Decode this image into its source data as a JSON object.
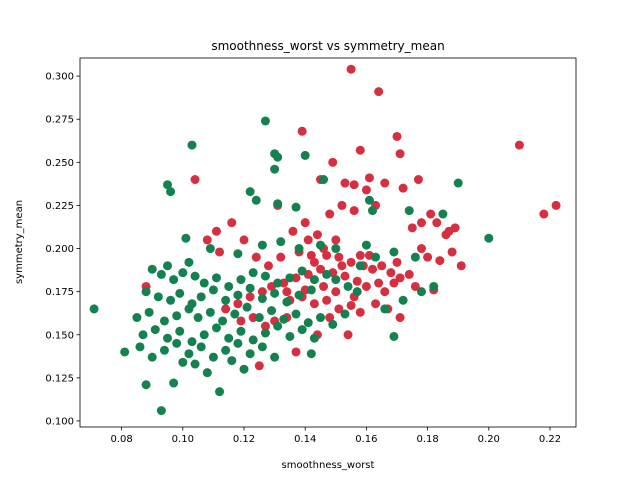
{
  "chart_data": {
    "type": "scatter",
    "title": "smoothness_worst vs symmetry_mean",
    "xlabel": "smoothness_worst",
    "ylabel": "symmetry_mean",
    "xlim": [
      0.0664,
      0.2285
    ],
    "ylim": [
      0.0965,
      0.3105
    ],
    "xticks": [
      0.08,
      0.1,
      0.12,
      0.14,
      0.16,
      0.18,
      0.2,
      0.22
    ],
    "yticks": [
      0.1,
      0.125,
      0.15,
      0.175,
      0.2,
      0.225,
      0.25,
      0.275,
      0.3
    ],
    "grid": false,
    "legend": "none",
    "series": [
      {
        "color": "#d62f3f",
        "points": [
          [
            0.155,
            0.304
          ],
          [
            0.164,
            0.291
          ],
          [
            0.139,
            0.268
          ],
          [
            0.17,
            0.265
          ],
          [
            0.21,
            0.26
          ],
          [
            0.158,
            0.257
          ],
          [
            0.171,
            0.255
          ],
          [
            0.149,
            0.25
          ],
          [
            0.104,
            0.24
          ],
          [
            0.145,
            0.24
          ],
          [
            0.161,
            0.241
          ],
          [
            0.166,
            0.238
          ],
          [
            0.153,
            0.238
          ],
          [
            0.156,
            0.237
          ],
          [
            0.177,
            0.24
          ],
          [
            0.172,
            0.235
          ],
          [
            0.16,
            0.234
          ],
          [
            0.218,
            0.22
          ],
          [
            0.222,
            0.225
          ],
          [
            0.183,
            0.215
          ],
          [
            0.178,
            0.215
          ],
          [
            0.175,
            0.212
          ],
          [
            0.187,
            0.21
          ],
          [
            0.189,
            0.212
          ],
          [
            0.181,
            0.22
          ],
          [
            0.163,
            0.225
          ],
          [
            0.152,
            0.225
          ],
          [
            0.156,
            0.222
          ],
          [
            0.148,
            0.22
          ],
          [
            0.131,
            0.225
          ],
          [
            0.136,
            0.21
          ],
          [
            0.14,
            0.215
          ],
          [
            0.144,
            0.208
          ],
          [
            0.15,
            0.205
          ],
          [
            0.138,
            0.198
          ],
          [
            0.142,
            0.196
          ],
          [
            0.146,
            0.2
          ],
          [
            0.151,
            0.195
          ],
          [
            0.155,
            0.192
          ],
          [
            0.159,
            0.19
          ],
          [
            0.162,
            0.188
          ],
          [
            0.165,
            0.19
          ],
          [
            0.168,
            0.186
          ],
          [
            0.171,
            0.183
          ],
          [
            0.174,
            0.185
          ],
          [
            0.178,
            0.2
          ],
          [
            0.18,
            0.195
          ],
          [
            0.184,
            0.193
          ],
          [
            0.186,
            0.208
          ],
          [
            0.188,
            0.198
          ],
          [
            0.191,
            0.19
          ],
          [
            0.176,
            0.178
          ],
          [
            0.169,
            0.18
          ],
          [
            0.166,
            0.175
          ],
          [
            0.16,
            0.178
          ],
          [
            0.157,
            0.181
          ],
          [
            0.153,
            0.184
          ],
          [
            0.149,
            0.186
          ],
          [
            0.145,
            0.188
          ],
          [
            0.141,
            0.185
          ],
          [
            0.137,
            0.183
          ],
          [
            0.133,
            0.18
          ],
          [
            0.129,
            0.178
          ],
          [
            0.126,
            0.175
          ],
          [
            0.122,
            0.172
          ],
          [
            0.118,
            0.168
          ],
          [
            0.114,
            0.165
          ],
          [
            0.111,
            0.21
          ],
          [
            0.116,
            0.215
          ],
          [
            0.108,
            0.205
          ],
          [
            0.112,
            0.198
          ],
          [
            0.12,
            0.205
          ],
          [
            0.124,
            0.195
          ],
          [
            0.128,
            0.19
          ],
          [
            0.132,
            0.195
          ],
          [
            0.135,
            0.17
          ],
          [
            0.139,
            0.172
          ],
          [
            0.143,
            0.168
          ],
          [
            0.147,
            0.17
          ],
          [
            0.151,
            0.165
          ],
          [
            0.155,
            0.167
          ],
          [
            0.158,
            0.163
          ],
          [
            0.163,
            0.168
          ],
          [
            0.167,
            0.165
          ],
          [
            0.171,
            0.16
          ],
          [
            0.15,
            0.175
          ],
          [
            0.146,
            0.178
          ],
          [
            0.14,
            0.176
          ],
          [
            0.134,
            0.16
          ],
          [
            0.13,
            0.158
          ],
          [
            0.127,
            0.155
          ],
          [
            0.123,
            0.16
          ],
          [
            0.119,
            0.158
          ],
          [
            0.125,
            0.132
          ],
          [
            0.144,
            0.15
          ],
          [
            0.148,
            0.16
          ],
          [
            0.156,
            0.172
          ],
          [
            0.088,
            0.178
          ],
          [
            0.154,
            0.15
          ],
          [
            0.137,
            0.14
          ],
          [
            0.141,
            0.205
          ],
          [
            0.143,
            0.192
          ],
          [
            0.147,
            0.196
          ],
          [
            0.152,
            0.19
          ],
          [
            0.161,
            0.196
          ],
          [
            0.164,
            0.18
          ],
          [
            0.158,
            0.196
          ],
          [
            0.17,
            0.192
          ],
          [
            0.182,
            0.176
          ],
          [
            0.134,
            0.175
          ]
        ]
      },
      {
        "color": "#148250",
        "points": [
          [
            0.127,
            0.274
          ],
          [
            0.103,
            0.26
          ],
          [
            0.13,
            0.255
          ],
          [
            0.131,
            0.253
          ],
          [
            0.14,
            0.254
          ],
          [
            0.13,
            0.246
          ],
          [
            0.095,
            0.237
          ],
          [
            0.096,
            0.233
          ],
          [
            0.146,
            0.24
          ],
          [
            0.19,
            0.238
          ],
          [
            0.122,
            0.233
          ],
          [
            0.124,
            0.228
          ],
          [
            0.131,
            0.226
          ],
          [
            0.137,
            0.224
          ],
          [
            0.161,
            0.228
          ],
          [
            0.162,
            0.222
          ],
          [
            0.174,
            0.222
          ],
          [
            0.185,
            0.22
          ],
          [
            0.101,
            0.206
          ],
          [
            0.2,
            0.206
          ],
          [
            0.095,
            0.19
          ],
          [
            0.102,
            0.192
          ],
          [
            0.109,
            0.2
          ],
          [
            0.118,
            0.197
          ],
          [
            0.126,
            0.202
          ],
          [
            0.132,
            0.204
          ],
          [
            0.138,
            0.2
          ],
          [
            0.145,
            0.202
          ],
          [
            0.15,
            0.2
          ],
          [
            0.16,
            0.202
          ],
          [
            0.169,
            0.198
          ],
          [
            0.176,
            0.195
          ],
          [
            0.09,
            0.188
          ],
          [
            0.093,
            0.185
          ],
          [
            0.097,
            0.182
          ],
          [
            0.1,
            0.186
          ],
          [
            0.104,
            0.184
          ],
          [
            0.107,
            0.18
          ],
          [
            0.111,
            0.183
          ],
          [
            0.115,
            0.178
          ],
          [
            0.119,
            0.182
          ],
          [
            0.123,
            0.186
          ],
          [
            0.127,
            0.184
          ],
          [
            0.131,
            0.18
          ],
          [
            0.135,
            0.183
          ],
          [
            0.139,
            0.187
          ],
          [
            0.143,
            0.182
          ],
          [
            0.147,
            0.185
          ],
          [
            0.088,
            0.175
          ],
          [
            0.092,
            0.172
          ],
          [
            0.096,
            0.17
          ],
          [
            0.099,
            0.174
          ],
          [
            0.103,
            0.168
          ],
          [
            0.106,
            0.172
          ],
          [
            0.11,
            0.176
          ],
          [
            0.114,
            0.17
          ],
          [
            0.118,
            0.173
          ],
          [
            0.122,
            0.177
          ],
          [
            0.126,
            0.171
          ],
          [
            0.13,
            0.174
          ],
          [
            0.134,
            0.169
          ],
          [
            0.138,
            0.173
          ],
          [
            0.142,
            0.176
          ],
          [
            0.071,
            0.165
          ],
          [
            0.085,
            0.16
          ],
          [
            0.089,
            0.163
          ],
          [
            0.094,
            0.158
          ],
          [
            0.098,
            0.161
          ],
          [
            0.102,
            0.165
          ],
          [
            0.105,
            0.16
          ],
          [
            0.109,
            0.163
          ],
          [
            0.113,
            0.158
          ],
          [
            0.117,
            0.162
          ],
          [
            0.121,
            0.166
          ],
          [
            0.125,
            0.16
          ],
          [
            0.129,
            0.164
          ],
          [
            0.133,
            0.159
          ],
          [
            0.137,
            0.162
          ],
          [
            0.141,
            0.157
          ],
          [
            0.145,
            0.16
          ],
          [
            0.149,
            0.156
          ],
          [
            0.153,
            0.162
          ],
          [
            0.087,
            0.15
          ],
          [
            0.091,
            0.153
          ],
          [
            0.095,
            0.148
          ],
          [
            0.099,
            0.152
          ],
          [
            0.103,
            0.146
          ],
          [
            0.107,
            0.15
          ],
          [
            0.111,
            0.154
          ],
          [
            0.115,
            0.148
          ],
          [
            0.119,
            0.152
          ],
          [
            0.123,
            0.147
          ],
          [
            0.127,
            0.151
          ],
          [
            0.131,
            0.155
          ],
          [
            0.135,
            0.149
          ],
          [
            0.139,
            0.153
          ],
          [
            0.143,
            0.148
          ],
          [
            0.081,
            0.14
          ],
          [
            0.086,
            0.143
          ],
          [
            0.09,
            0.137
          ],
          [
            0.094,
            0.141
          ],
          [
            0.098,
            0.145
          ],
          [
            0.102,
            0.139
          ],
          [
            0.106,
            0.143
          ],
          [
            0.11,
            0.137
          ],
          [
            0.114,
            0.141
          ],
          [
            0.118,
            0.145
          ],
          [
            0.122,
            0.139
          ],
          [
            0.126,
            0.143
          ],
          [
            0.13,
            0.137
          ],
          [
            0.142,
            0.139
          ],
          [
            0.088,
            0.121
          ],
          [
            0.097,
            0.122
          ],
          [
            0.112,
            0.117
          ],
          [
            0.093,
            0.106
          ],
          [
            0.169,
            0.149
          ],
          [
            0.166,
            0.165
          ],
          [
            0.172,
            0.17
          ],
          [
            0.178,
            0.175
          ],
          [
            0.182,
            0.178
          ],
          [
            0.157,
            0.175
          ],
          [
            0.154,
            0.178
          ],
          [
            0.15,
            0.182
          ],
          [
            0.158,
            0.19
          ],
          [
            0.163,
            0.195
          ],
          [
            0.12,
            0.13
          ],
          [
            0.116,
            0.135
          ],
          [
            0.108,
            0.128
          ],
          [
            0.104,
            0.133
          ],
          [
            0.1,
            0.134
          ]
        ]
      }
    ]
  }
}
